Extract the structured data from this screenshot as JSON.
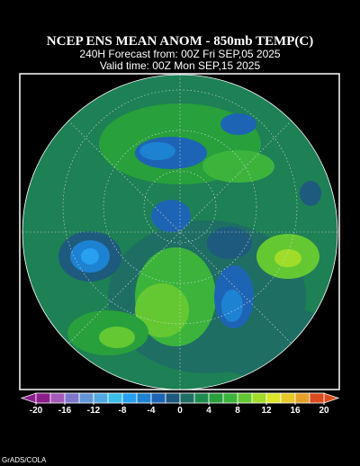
{
  "header": {
    "title": "NCEP ENS MEAN ANOM - 850mb TEMP(C)",
    "forecast": "240H Forecast from: 00Z Fri SEP,05 2025",
    "valid": "Valid time: 00Z Mon SEP,15 2025"
  },
  "colorbar": {
    "range": [
      -20,
      20
    ],
    "ticks": [
      -20,
      -16,
      -12,
      -8,
      -4,
      0,
      4,
      8,
      12,
      16,
      20
    ],
    "colors": [
      "#8c1e8c",
      "#a55ab9",
      "#7d78cd",
      "#6496d7",
      "#50aae1",
      "#3cbeeb",
      "#28a0f0",
      "#1e82d2",
      "#1e64b4",
      "#1e5a7d",
      "#1e6e64",
      "#1e8c50",
      "#28a03c",
      "#3cb43c",
      "#64c832",
      "#a0dc28",
      "#dce628",
      "#e6c828",
      "#e6a028",
      "#dc4b1e"
    ]
  },
  "credit": "GrADS/COLA"
}
